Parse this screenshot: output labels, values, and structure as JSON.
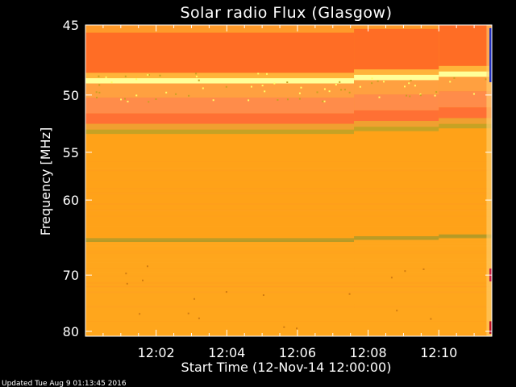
{
  "chart_data": {
    "type": "heatmap",
    "title": "Solar radio Flux (Glasgow)",
    "xlabel": "Start Time (12-Nov-14 12:00:00)",
    "ylabel": "Frequency [MHz]",
    "x_ticks": [
      "12:02",
      "12:04",
      "12:06",
      "12:08",
      "12:10"
    ],
    "x_tick_minutes": [
      2,
      4,
      6,
      8,
      10
    ],
    "xlim_minutes": [
      0,
      11.5
    ],
    "y_ticks": [
      45,
      50,
      55,
      60,
      70,
      80
    ],
    "ylim": [
      45,
      81
    ],
    "y_scale": "reciprocal",
    "bands": [
      {
        "from": 45,
        "to": 45.5,
        "color": "#ff9a2a"
      },
      {
        "from": 45.5,
        "to": 48.3,
        "color": "#ff6d25"
      },
      {
        "from": 48.3,
        "to": 48.7,
        "color": "#ffb43a"
      },
      {
        "from": 48.7,
        "to": 49.1,
        "color": "#ffff99"
      },
      {
        "from": 49.1,
        "to": 50.2,
        "color": "#ffa040"
      },
      {
        "from": 50.2,
        "to": 51.5,
        "color": "#ff8c4a"
      },
      {
        "from": 51.5,
        "to": 52.4,
        "color": "#ff7034"
      },
      {
        "from": 52.4,
        "to": 52.9,
        "color": "#f0a030"
      },
      {
        "from": 52.9,
        "to": 53.3,
        "color": "#c6a224"
      },
      {
        "from": 53.3,
        "to": 64.7,
        "color": "#ffa218"
      },
      {
        "from": 64.7,
        "to": 65.2,
        "color": "#b59a26"
      },
      {
        "from": 65.2,
        "to": 81,
        "color": "#ffa61c"
      }
    ],
    "segments_minutes": [
      0,
      7.6,
      10.0,
      11.5
    ],
    "grid": false
  },
  "footer": "Updated Tue Aug  9 01:13:45 2016"
}
